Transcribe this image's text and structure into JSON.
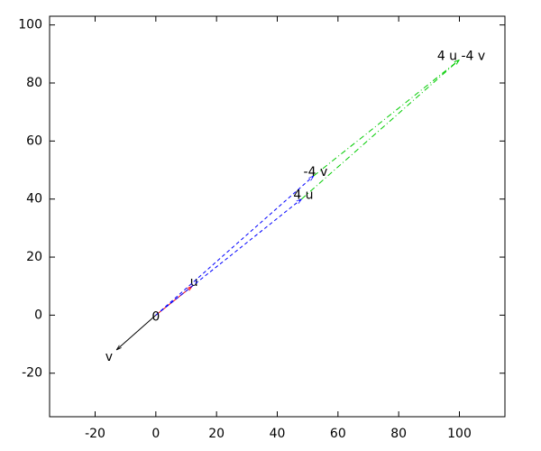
{
  "chart_data": {
    "type": "vector",
    "xlim": [
      -35,
      115
    ],
    "xticks": [
      -20,
      0,
      20,
      40,
      60,
      80,
      100
    ],
    "ylim": [
      -35,
      103
    ],
    "yticks": [
      -20,
      0,
      20,
      40,
      60,
      80,
      100
    ],
    "annotations": [
      {
        "text": "0",
        "x": 0,
        "y": 0
      }
    ],
    "vectors": [
      {
        "label": "u",
        "color": "#ff0000",
        "dash": "solid",
        "x": [
          0,
          12
        ],
        "y": [
          0,
          10
        ]
      },
      {
        "label": "v",
        "color": "#000000",
        "dash": "solid",
        "x": [
          0,
          -13
        ],
        "y": [
          0,
          -12
        ]
      },
      {
        "label": "4 u",
        "color": "#0000ff",
        "dash": "dashed",
        "x": [
          0,
          48
        ],
        "y": [
          0,
          40
        ]
      },
      {
        "label": "-4 v",
        "color": "#0000ff",
        "dash": "dashed",
        "x": [
          0,
          52
        ],
        "y": [
          0,
          48
        ]
      },
      {
        "label": "4 u -4 v",
        "color": "#00cc00",
        "dash": "dashdot",
        "x": [
          48,
          100
        ],
        "y": [
          40,
          88
        ]
      },
      {
        "color": "#00cc00",
        "dash": "dashdot",
        "x": [
          52,
          100
        ],
        "y": [
          48,
          88
        ]
      }
    ]
  }
}
